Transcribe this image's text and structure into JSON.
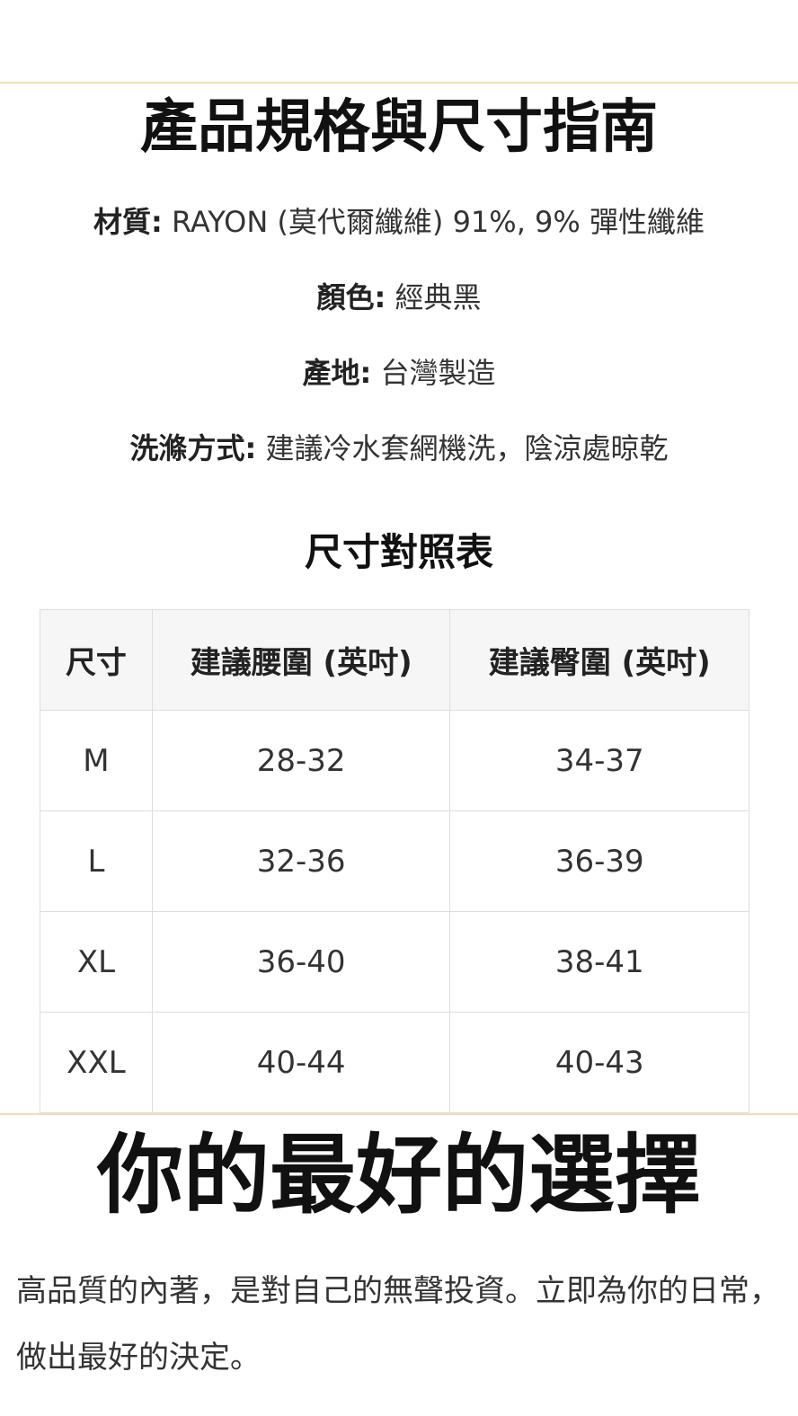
{
  "heading": "產品規格與尺寸指南",
  "specs": [
    {
      "label": "材質:",
      "value": " RAYON (莫代爾纖維) 91%, 9% 彈性纖維"
    },
    {
      "label": "顏色:",
      "value": " 經典黑"
    },
    {
      "label": "產地:",
      "value": " 台灣製造"
    },
    {
      "label": "洗滌方式:",
      "value": " 建議冷水套網機洗，陰涼處晾乾"
    }
  ],
  "size_chart": {
    "title": "尺寸對照表",
    "headers": [
      "尺寸",
      "建議腰圍 (英吋)",
      "建議臀圍 (英吋)"
    ],
    "rows": [
      [
        "M",
        "28-32",
        "34-37"
      ],
      [
        "L",
        "32-36",
        "36-39"
      ],
      [
        "XL",
        "36-40",
        "38-41"
      ],
      [
        "XXL",
        "40-44",
        "40-43"
      ]
    ]
  },
  "slogan": "你的最好的選擇",
  "paragraph": "高品質的內著，是對自己的無聲投資。立即為你的日常，做出最好的決定。",
  "colors": {
    "divider": "#f3dcb4",
    "header_bg": "#f6f6f6"
  }
}
